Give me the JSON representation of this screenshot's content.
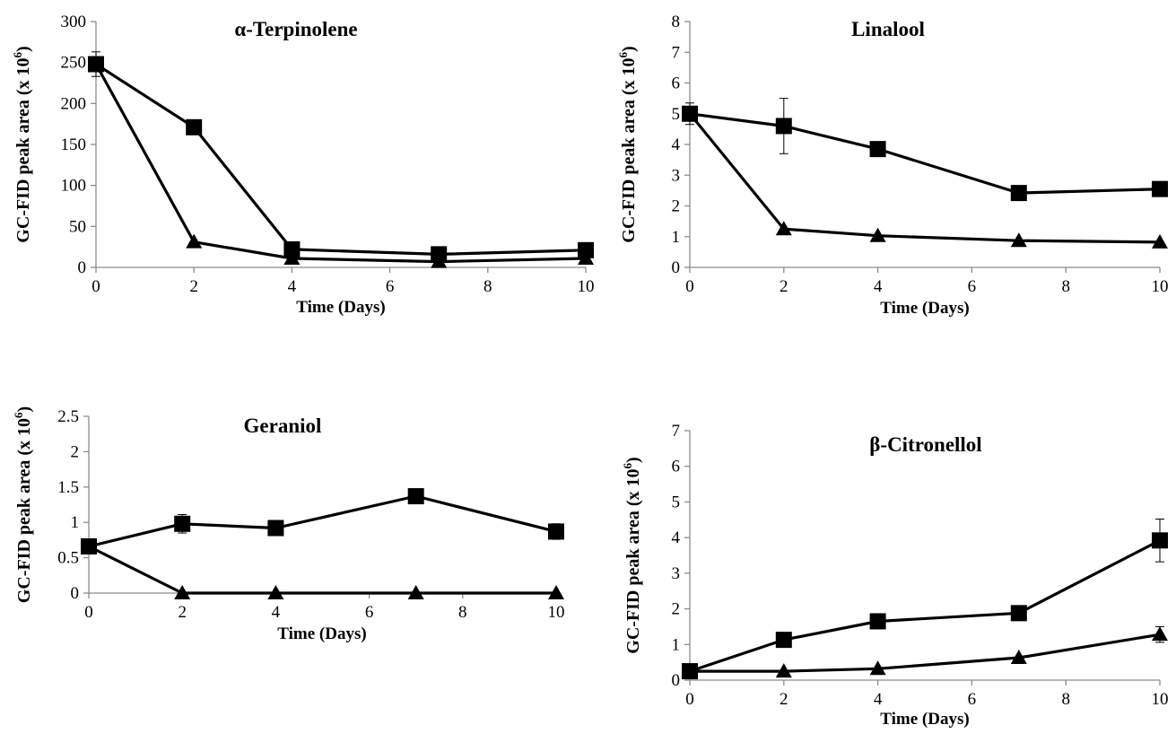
{
  "chart_data": [
    {
      "type": "line",
      "title": "α-Terpinolene",
      "xlabel": "Time (Days)",
      "ylabel": "GC-FID peak area (x 10",
      "ylabel_sup": "6",
      "ylabel_close": ")",
      "xlim": [
        0,
        10
      ],
      "ylim": [
        0,
        300
      ],
      "xticks": [
        0,
        2,
        4,
        6,
        8,
        10
      ],
      "xtick_labels": [
        "0",
        "2",
        "4",
        "6",
        "8",
        "10"
      ],
      "yticks": [
        0,
        50,
        100,
        150,
        200,
        250,
        300
      ],
      "ytick_labels": [
        "0",
        "50",
        "100",
        "150",
        "200",
        "250",
        "300"
      ],
      "grid": false,
      "series": [
        {
          "marker": "square",
          "x": [
            0,
            2,
            4,
            7,
            10
          ],
          "y": [
            248,
            171,
            22,
            16,
            21
          ],
          "err": [
            15,
            0,
            0,
            0,
            0
          ]
        },
        {
          "marker": "triangle",
          "x": [
            0,
            2,
            4,
            7,
            10
          ],
          "y": [
            248,
            31,
            11,
            7,
            11
          ],
          "err": [
            0,
            0,
            0,
            0,
            0
          ]
        }
      ]
    },
    {
      "type": "line",
      "title": "Linalool",
      "xlabel": "Time (Days)",
      "ylabel": "GC-FID peak area (x 10",
      "ylabel_sup": "6",
      "ylabel_close": ")",
      "xlim": [
        0,
        10
      ],
      "ylim": [
        0,
        8
      ],
      "xticks": [
        0,
        2,
        4,
        6,
        8,
        10
      ],
      "xtick_labels": [
        "0",
        "2",
        "4",
        "6",
        "8",
        "10"
      ],
      "yticks": [
        0,
        1,
        2,
        3,
        4,
        5,
        6,
        7,
        8
      ],
      "ytick_labels": [
        "0",
        "1",
        "2",
        "3",
        "4",
        "5",
        "6",
        "7",
        "8"
      ],
      "grid": false,
      "series": [
        {
          "marker": "square",
          "x": [
            0,
            2,
            4,
            7,
            10
          ],
          "y": [
            5.0,
            4.6,
            3.85,
            2.42,
            2.55
          ],
          "err": [
            0.35,
            0.9,
            0,
            0,
            0
          ]
        },
        {
          "marker": "triangle",
          "x": [
            0,
            2,
            4,
            7,
            10
          ],
          "y": [
            5.0,
            1.25,
            1.03,
            0.87,
            0.82
          ],
          "err": [
            0,
            0,
            0,
            0,
            0
          ]
        }
      ]
    },
    {
      "type": "line",
      "title": "Geraniol",
      "xlabel": "Time (Days)",
      "ylabel": "GC-FID peak area (x 10",
      "ylabel_sup": "6",
      "ylabel_close": ")",
      "xlim": [
        0,
        10
      ],
      "ylim": [
        0,
        2.5
      ],
      "xticks": [
        0,
        2,
        4,
        6,
        8,
        10
      ],
      "xtick_labels": [
        "0",
        "2",
        "4",
        "6",
        "8",
        "10"
      ],
      "yticks": [
        0,
        0.5,
        1,
        1.5,
        2,
        2.5
      ],
      "ytick_labels": [
        "0",
        "0.5",
        "1",
        "1.5",
        "2",
        "2.5"
      ],
      "grid": false,
      "series": [
        {
          "marker": "square",
          "x": [
            0,
            2,
            4,
            7,
            10
          ],
          "y": [
            0.66,
            0.98,
            0.92,
            1.37,
            0.87
          ],
          "err": [
            0,
            0.13,
            0,
            0,
            0.11
          ]
        },
        {
          "marker": "triangle",
          "x": [
            0,
            2,
            4,
            7,
            10
          ],
          "y": [
            0.66,
            0,
            0,
            0,
            0
          ],
          "err": [
            0,
            0,
            0,
            0,
            0
          ]
        }
      ]
    },
    {
      "type": "line",
      "title": "β-Citronellol",
      "xlabel": "Time (Days)",
      "ylabel": "GC-FID peak area (x 10",
      "ylabel_sup": "6",
      "ylabel_close": ")",
      "xlim": [
        0,
        10
      ],
      "ylim": [
        0,
        7
      ],
      "xticks": [
        0,
        2,
        4,
        6,
        8,
        10
      ],
      "xtick_labels": [
        "0",
        "2",
        "4",
        "6",
        "8",
        "10"
      ],
      "yticks": [
        0,
        1,
        2,
        3,
        4,
        5,
        6,
        7
      ],
      "ytick_labels": [
        "0",
        "1",
        "2",
        "3",
        "4",
        "5",
        "6",
        "7"
      ],
      "grid": false,
      "series": [
        {
          "marker": "square",
          "x": [
            0,
            2,
            4,
            7,
            10
          ],
          "y": [
            0.25,
            1.13,
            1.65,
            1.88,
            3.92
          ],
          "err": [
            0,
            0,
            0,
            0,
            0.6
          ]
        },
        {
          "marker": "triangle",
          "x": [
            0,
            2,
            4,
            7,
            10
          ],
          "y": [
            0.25,
            0.25,
            0.32,
            0.63,
            1.28
          ],
          "err": [
            0,
            0,
            0,
            0,
            0.22
          ]
        }
      ]
    }
  ]
}
